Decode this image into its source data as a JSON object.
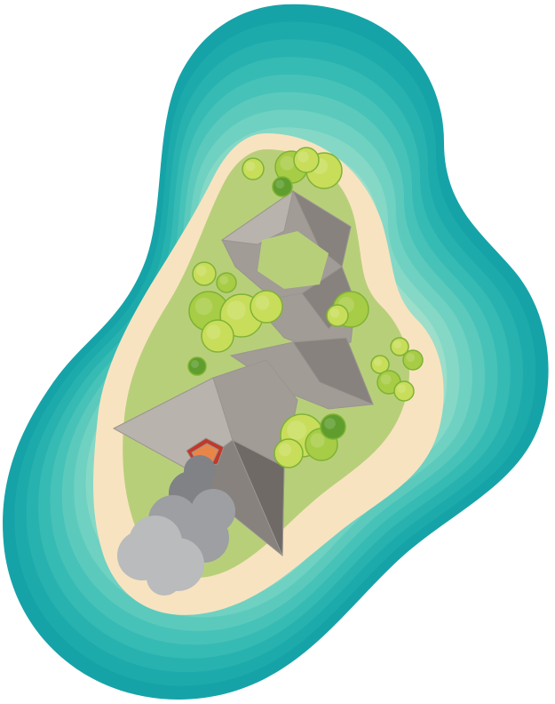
{
  "map": {
    "palette": {
      "water": [
        "#16a3a8",
        "#1daaab",
        "#28b2af",
        "#36bab4",
        "#47c2b8",
        "#5bcabd",
        "#6fd1c1",
        "#85d8c6",
        "#9cdec9",
        "#b4e4cc",
        "#cae8cf",
        "#dcebd0"
      ],
      "sand": "#f8e3c0",
      "sand_inner": "#f3ddb4",
      "grass": "#b8cf7a",
      "grass_dark": "#a9c36a",
      "rock_light": "#b8b3ad",
      "rock_mid": "#a19c96",
      "rock_dark": "#87827d",
      "rock_shadow": "#6f6a66",
      "crater_rim": "#c0392b",
      "lava": "#e8864a",
      "smoke_light": "#b9bbbd",
      "smoke_mid": "#9d9fa2",
      "smoke_dark": "#808286",
      "tree_light": "#c8dd5a",
      "tree_mid": "#a7cc45",
      "tree_dark": "#7fb334",
      "bush": "#5f9e2e"
    }
  }
}
